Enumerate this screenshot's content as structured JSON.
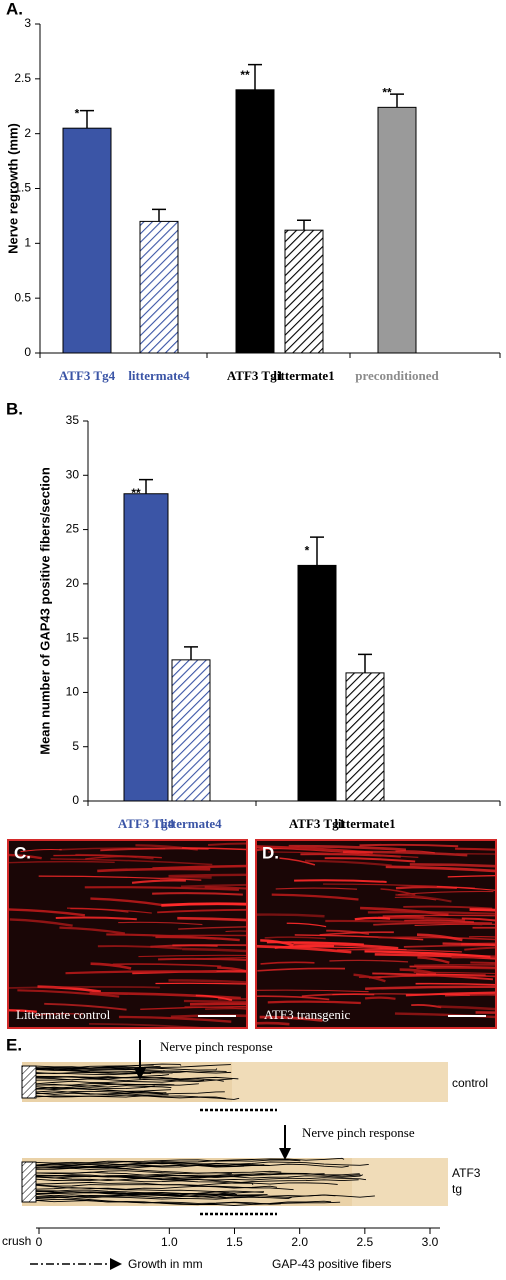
{
  "chart_data": [
    {
      "type": "bar",
      "panel_label": "A.",
      "y_label": "Nerve regrowth (mm)",
      "categories": [
        "ATF3 Tg4",
        "littermate4",
        "ATF3 Tg1",
        "littermate1",
        "preconditioned"
      ],
      "category_colors": [
        "#3b55a6",
        "#3b55a6",
        "#000000",
        "#000000",
        "#8c8c8c"
      ],
      "values": [
        2.05,
        1.2,
        2.4,
        1.12,
        2.24
      ],
      "errors": [
        0.16,
        0.11,
        0.23,
        0.09,
        0.12
      ],
      "colors": [
        "#3b55a6",
        "#3b55a6",
        "#000000",
        "#000000",
        "#9a9a9a"
      ],
      "hatched": [
        false,
        true,
        false,
        true,
        false
      ],
      "annotations": [
        "*",
        null,
        "**",
        null,
        "**"
      ],
      "ylim": [
        0,
        3
      ],
      "yticks": [
        0,
        0.5,
        1,
        1.5,
        2,
        2.5,
        3
      ]
    },
    {
      "type": "bar",
      "panel_label": "B.",
      "y_label": "Mean number of GAP43 positive fibers/section",
      "categories": [
        "ATF3 Tg4",
        "littermate4",
        "ATF3 Tg1",
        "littermate1"
      ],
      "category_colors": [
        "#3b55a6",
        "#3b55a6",
        "#000000",
        "#000000"
      ],
      "values": [
        28.3,
        13,
        21.7,
        11.8
      ],
      "errors": [
        1.3,
        1.2,
        2.6,
        1.7
      ],
      "colors": [
        "#3b55a6",
        "#3b55a6",
        "#000000",
        "#000000"
      ],
      "hatched": [
        false,
        true,
        false,
        true
      ],
      "annotations": [
        "**",
        null,
        "*",
        null
      ],
      "ylim": [
        0,
        35
      ],
      "yticks": [
        0,
        5,
        10,
        15,
        20,
        25,
        30,
        35
      ]
    }
  ],
  "panel_c": {
    "label": "C.",
    "caption": "Littermate control"
  },
  "panel_d": {
    "label": "D.",
    "caption": "ATF3 transgenic"
  },
  "panel_e": {
    "label": "E.",
    "pinch_label_1": "Nerve pinch response",
    "pinch_label_2": "Nerve pinch response",
    "row_1": "control",
    "row_2_line_1": "ATF3",
    "row_2_line_2": "tg",
    "crush_label": "crush",
    "xlim": [
      0,
      3
    ],
    "xticks": [
      0,
      {
        "value": 1,
        "label": "1.0"
      },
      {
        "value": 1.5,
        "label": "1.5"
      },
      {
        "value": 2,
        "label": "2.0"
      },
      {
        "value": 2.5,
        "label": "2.5"
      },
      {
        "value": 3,
        "label": "3.0"
      }
    ],
    "legend_growth": "Growth in mm",
    "legend_gap": "GAP-43 positive fibers"
  }
}
